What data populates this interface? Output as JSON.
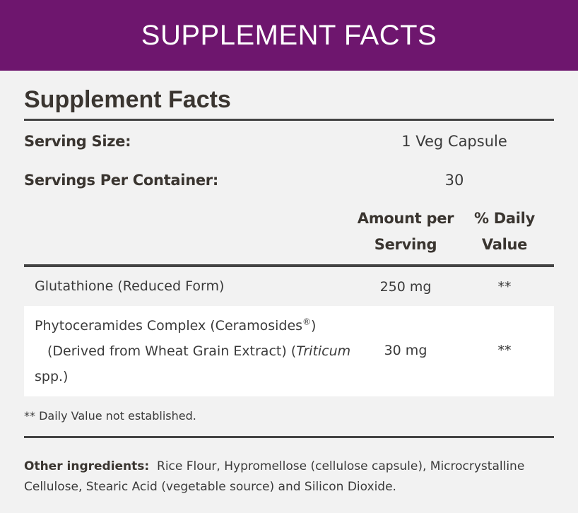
{
  "banner": {
    "title": "SUPPLEMENT FACTS"
  },
  "panel": {
    "title": "Supplement Facts",
    "serving_size_label": "Serving Size:",
    "serving_size_value": "1 Veg Capsule",
    "servings_label": "Servings Per Container:",
    "servings_value": "30",
    "col_amount_1": "Amount per",
    "col_amount_2": "Serving",
    "col_dv_1": "% Daily",
    "col_dv_2": "Value"
  },
  "rows": [
    {
      "name": "Glutathione (Reduced Form)",
      "amount": "250 mg",
      "dv": "**"
    },
    {
      "name_line1": "Phytoceramides Complex (Ceramosides",
      "name_mark": "®",
      "name_line1_end": ")",
      "name_line2a": "(Derived from Wheat Grain Extract) (",
      "name_line2b": "Triticum",
      "name_line3": "spp.)",
      "amount": "30 mg",
      "dv": "**"
    }
  ],
  "footnote": "** Daily Value not established.",
  "other": {
    "label": "Other ingredients:",
    "text": "Rice Flour, Hypromellose (cellulose capsule), Microcrystalline Cellulose, Stearic Acid (vegetable source) and Silicon Dioxide."
  }
}
